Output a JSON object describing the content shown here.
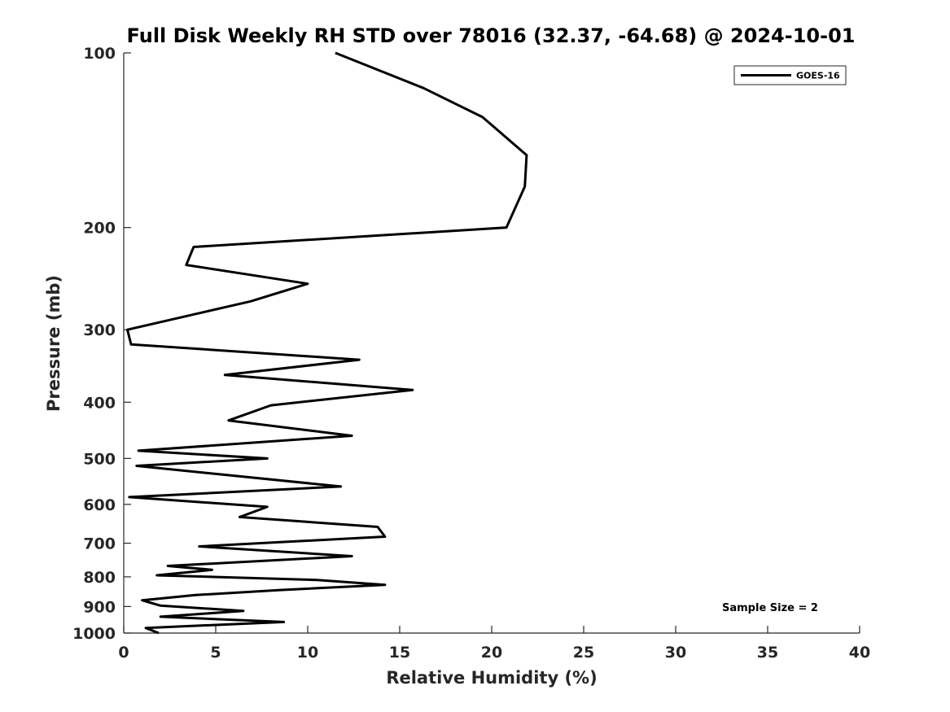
{
  "chart_data": {
    "type": "line",
    "title": "Full Disk Weekly RH STD over 78016 (32.37, -64.68) @ 2024-10-01",
    "xlabel": "Relative Humidity (%)",
    "ylabel": "Pressure (mb)",
    "xlim": [
      0,
      40
    ],
    "ylim": [
      1000,
      100
    ],
    "yscale": "log",
    "xticks": [
      0,
      5,
      10,
      15,
      20,
      25,
      30,
      35,
      40
    ],
    "yticks": [
      100,
      200,
      300,
      400,
      500,
      600,
      700,
      800,
      900,
      1000
    ],
    "grid": false,
    "legend_position": "top-right",
    "annotation": "Sample Size = 2",
    "series": [
      {
        "name": "GOES-16",
        "color": "#000000",
        "points": [
          [
            11.5,
            100
          ],
          [
            16.3,
            115
          ],
          [
            19.5,
            129
          ],
          [
            21.9,
            150
          ],
          [
            21.8,
            170
          ],
          [
            20.8,
            200
          ],
          [
            3.8,
            216
          ],
          [
            3.4,
            232
          ],
          [
            10.0,
            250
          ],
          [
            6.9,
            268
          ],
          [
            0.2,
            300
          ],
          [
            0.4,
            318
          ],
          [
            12.8,
            338
          ],
          [
            5.5,
            359
          ],
          [
            15.7,
            381
          ],
          [
            8.0,
            405
          ],
          [
            5.7,
            430
          ],
          [
            12.4,
            457
          ],
          [
            0.8,
            485
          ],
          [
            7.8,
            500
          ],
          [
            0.7,
            515
          ],
          [
            11.8,
            559
          ],
          [
            0.3,
            583
          ],
          [
            7.8,
            606
          ],
          [
            6.3,
            631
          ],
          [
            13.8,
            656
          ],
          [
            14.2,
            682
          ],
          [
            4.1,
            709
          ],
          [
            12.4,
            737
          ],
          [
            2.4,
            766
          ],
          [
            4.8,
            778
          ],
          [
            1.8,
            795
          ],
          [
            10.5,
            810
          ],
          [
            14.2,
            826
          ],
          [
            8.5,
            843
          ],
          [
            3.9,
            860
          ],
          [
            1.0,
            878
          ],
          [
            2.0,
            897
          ],
          [
            6.5,
            916
          ],
          [
            2.0,
            937
          ],
          [
            8.7,
            957
          ],
          [
            1.2,
            980
          ],
          [
            1.9,
            1000
          ]
        ]
      }
    ]
  }
}
